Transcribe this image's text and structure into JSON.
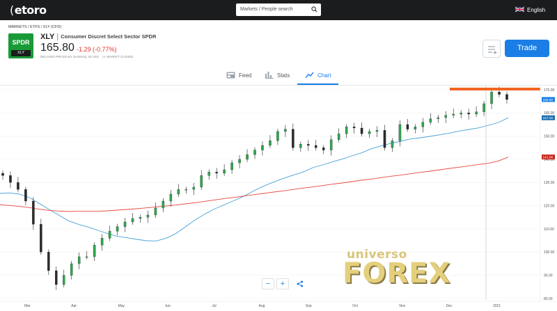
{
  "header": {
    "logo": "etoro",
    "search_placeholder": "Markets / People search",
    "language": "English"
  },
  "breadcrumb": "MARKETS / ETFS / XLY (CFD)",
  "instrument": {
    "badge_top": "SPDR",
    "badge_bottom": "XLY",
    "symbol": "XLY",
    "separator": "|",
    "name": "Consumer Discret Select Sector SPDR",
    "price": "165.80",
    "change": "-1.29 (-0.77%)",
    "disclaimer": "DELAYED PRICES BY NASDAQ, IN USD",
    "market_status": "MARKET CLOSED"
  },
  "actions": {
    "trade": "Trade"
  },
  "tabs": [
    {
      "label": "Feed",
      "icon": "feed-icon"
    },
    {
      "label": "Stats",
      "icon": "stats-icon"
    },
    {
      "label": "Chart",
      "icon": "chart-icon",
      "active": true
    }
  ],
  "watermark": {
    "top": "universo",
    "bottom": "FOREX"
  },
  "zoom_controls": {
    "minus": "−",
    "plus": "+",
    "share_icon": "share-icon"
  },
  "chart_data": {
    "type": "candlestick",
    "x_labels": [
      "Mar",
      "Apr",
      "May",
      "Jun",
      "Jul",
      "Aug",
      "Sep",
      "Oct",
      "Nov",
      "Dec",
      "2021"
    ],
    "y_ticks": [
      170.0,
      160.0,
      150.0,
      140.0,
      130.0,
      120.0,
      110.0,
      100.0,
      90.0,
      80.0
    ],
    "ylim": [
      78,
      172
    ],
    "price_tags": [
      {
        "value": "165.80",
        "color": "#1a7ee6"
      },
      {
        "value": "157.92",
        "color": "#1a6fb0"
      },
      {
        "value": "141.00",
        "color": "#c8281e"
      }
    ],
    "series": [
      {
        "name": "",
        "kind": "moving-average",
        "color": "#4a9fd8",
        "values": [
          125.3,
          125.5,
          125,
          123.5,
          121,
          118.5,
          116,
          113.5,
          112,
          110.8,
          109.4,
          108,
          106.8,
          106.2,
          105.5,
          104.9,
          104.8,
          106,
          108,
          111,
          114,
          116.5,
          118.7,
          120.5,
          122.3,
          124.2,
          126.5,
          128.5,
          130.2,
          131.8,
          133.2,
          134.5,
          136.4,
          137.6,
          138.9,
          140.1,
          141.5,
          142.8,
          144.6,
          145.8,
          146.9,
          147.8,
          148.8,
          149.3,
          149.9,
          150.6,
          151.3,
          152.2,
          152.9,
          153.6,
          154.7,
          155.9,
          157.9
        ]
      },
      {
        "name": "",
        "kind": "moving-average",
        "color": "#e8453c",
        "values": [
          120.4,
          120.1,
          119.7,
          119.2,
          118.5,
          118,
          117.7,
          117.5,
          117.6,
          117.6,
          117.6,
          117.8,
          118.1,
          118.4,
          118.7,
          119.1,
          119.5,
          119.9,
          120.3,
          120.8,
          121.3,
          121.9,
          122.5,
          123.1,
          123.6,
          124.2,
          124.8,
          125.3,
          125.9,
          126.4,
          127,
          127.6,
          128.1,
          128.7,
          129.3,
          129.8,
          130.4,
          131,
          131.5,
          132.1,
          132.7,
          133.2,
          133.8,
          134.4,
          134.9,
          135.5,
          136.1,
          136.6,
          137.2,
          137.8,
          138.3,
          139.3,
          141
        ]
      }
    ],
    "candles_close": [
      133,
      130,
      127,
      122,
      112,
      100,
      92,
      86,
      90,
      95,
      98,
      98,
      103,
      106,
      109,
      111,
      113,
      114.5,
      115,
      116,
      119,
      122,
      125,
      127,
      127,
      128,
      133,
      134.5,
      134,
      135.5,
      138.5,
      140,
      142,
      144,
      146,
      148,
      152,
      153,
      145,
      146.5,
      146,
      145,
      144,
      148.5,
      151,
      154,
      153.5,
      151,
      152,
      152.5,
      145,
      148,
      155,
      153,
      154,
      156,
      157.5,
      158,
      159,
      159.5,
      160,
      159.5,
      160.5,
      164,
      169,
      168,
      165.8
    ]
  }
}
